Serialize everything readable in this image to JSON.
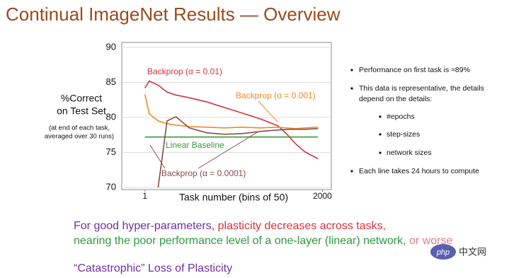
{
  "chart_data": {
    "type": "line",
    "y_label": [
      "%Correct",
      "on Test Set"
    ],
    "note": [
      "(at end of each task,",
      "averaged over 30 runs)"
    ],
    "x_label": "Task number (bins of 50)",
    "x": [
      1,
      50,
      150,
      250,
      350,
      500,
      700,
      900,
      1100,
      1300,
      1500,
      1600,
      1700,
      1800,
      1950
    ],
    "xlim": [
      -260,
      2100
    ],
    "xticks": [
      1,
      2000
    ],
    "ylim": [
      69.7,
      90.7
    ],
    "yticks": [
      70,
      75,
      80,
      85,
      90
    ],
    "grid": true,
    "series": [
      {
        "name": "Backprop (α = 0.01)",
        "color": "#d1343c",
        "values": [
          84.2,
          85.2,
          84.6,
          83.6,
          83.2,
          82.8,
          82.2,
          81.4,
          80.6,
          79.8,
          78.8,
          77.6,
          76.2,
          75.1,
          74.1
        ]
      },
      {
        "name": "Backprop (α = 0.001)",
        "color": "#f08a24",
        "values": [
          83.3,
          80.5,
          79.5,
          79.1,
          78.9,
          78.7,
          78.6,
          78.5,
          78.6,
          78.5,
          78.6,
          78.5,
          78.4,
          78.5,
          78.6
        ]
      },
      {
        "name": "Linear Baseline",
        "color": "#3a9a3a",
        "values": [
          77.2,
          77.2,
          77.2,
          77.2,
          77.2,
          77.2,
          77.2,
          77.2,
          77.2,
          77.2,
          77.2,
          77.2,
          77.2,
          77.2,
          77.2
        ]
      },
      {
        "name": "Backprop (α = 0.0001)",
        "color": "#8c4a4a",
        "values": [
          null,
          null,
          70,
          79.5,
          80.1,
          78.5,
          77.8,
          77.6,
          77.7,
          78,
          78.2,
          78.3,
          78.3,
          78.3,
          78.4
        ]
      }
    ]
  },
  "slide": {
    "title": "Continual ImageNet Results — Overview",
    "bullets": [
      "Performance on first task is ≈89%",
      "This data is representative, the details",
      "depend on the details:",
      "Each line takes 24 hours to compute"
    ],
    "sub_bullets": [
      "#epochs",
      "step-sizes",
      "network sizes"
    ],
    "footer": [
      "For good hyper-parameters, ",
      "plasticity decreases across tasks,",
      "nearing the poor performance level of a one-layer (linear) network, ",
      "or worse",
      "“Catastrophic” Loss of Plasticity"
    ],
    "watermark": [
      "php",
      "中文网"
    ]
  }
}
